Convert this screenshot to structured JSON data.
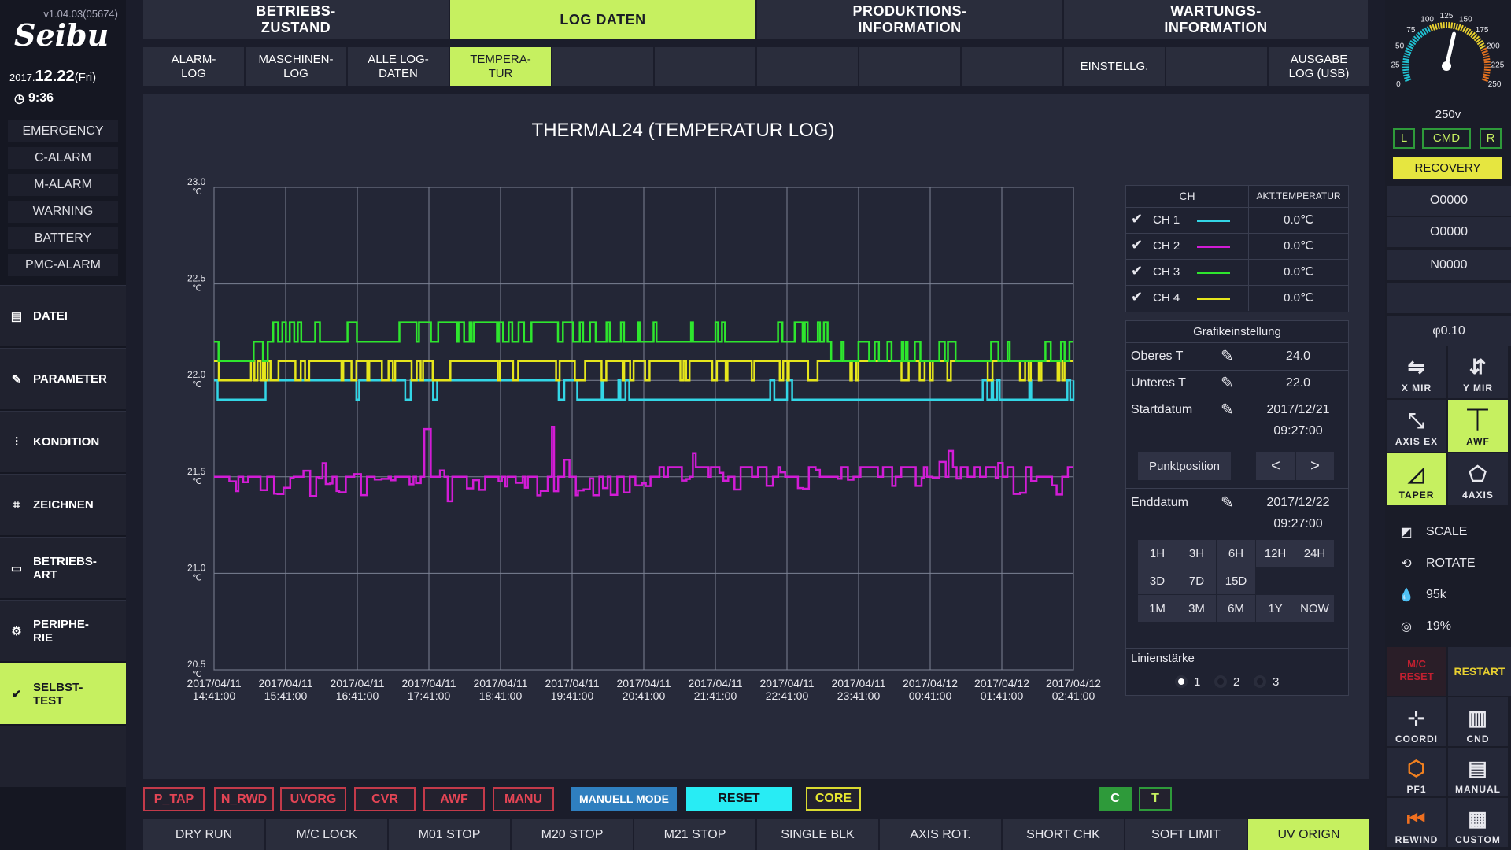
{
  "version": "v1.04.03(05674)",
  "brand": "Seibu",
  "date": {
    "year": "2017.",
    "md": "12.22",
    "dow": "(Fri)",
    "time": "9:36"
  },
  "alarms": [
    "EMERGENCY",
    "C-ALARM",
    "M-ALARM",
    "WARNING",
    "BATTERY",
    "PMC-ALARM"
  ],
  "nav": [
    {
      "label": "DATEI",
      "icon": "file-icon"
    },
    {
      "label": "PARAMETER",
      "icon": "wrench-icon"
    },
    {
      "label": "KONDITION",
      "icon": "sliders-icon"
    },
    {
      "label": "ZEICHNEN",
      "icon": "draw-icon"
    },
    {
      "label": "BETRIEBS-\nART",
      "icon": "mode-icon"
    },
    {
      "label": "PERIPHE-\nRIE",
      "icon": "gear-icon"
    },
    {
      "label": "SELBST-\nTEST",
      "icon": "check-icon"
    }
  ],
  "top_tabs": [
    "BETRIEBS-\nZUSTAND",
    "LOG DATEN",
    "PRODUKTIONS-\nINFORMATION",
    "WARTUNGS-\nINFORMATION"
  ],
  "sub_tabs": [
    "ALARM-\nLOG",
    "MASCHINEN-\nLOG",
    "ALLE LOG-\nDATEN",
    "TEMPERA-\nTUR",
    "",
    "",
    "",
    "",
    "",
    "EINSTELLG.",
    "",
    "AUSGABE\nLOG (USB)"
  ],
  "chart_data": {
    "type": "line",
    "title": "THERMAL24 (TEMPERATUR LOG)",
    "y_unit": "℃",
    "ylim": [
      20.5,
      23.0
    ],
    "y_ticks": [
      23.0,
      22.5,
      22.0,
      21.5,
      21.0,
      20.5
    ],
    "x_ticks": [
      [
        "2017/04/11",
        "14:41:00"
      ],
      [
        "2017/04/11",
        "15:41:00"
      ],
      [
        "2017/04/11",
        "16:41:00"
      ],
      [
        "2017/04/11",
        "17:41:00"
      ],
      [
        "2017/04/11",
        "18:41:00"
      ],
      [
        "2017/04/11",
        "19:41:00"
      ],
      [
        "2017/04/11",
        "20:41:00"
      ],
      [
        "2017/04/11",
        "21:41:00"
      ],
      [
        "2017/04/11",
        "22:41:00"
      ],
      [
        "2017/04/11",
        "23:41:00"
      ],
      [
        "2017/04/12",
        "00:41:00"
      ],
      [
        "2017/04/12",
        "01:41:00"
      ],
      [
        "2017/04/12",
        "02:41:00"
      ]
    ],
    "grid": true,
    "series": [
      {
        "name": "CH 1",
        "color": "#33d6e6",
        "base": 22.0,
        "low": 21.9,
        "segments": [
          [
            0,
            0.7,
            21.9
          ],
          [
            0.7,
            1.1,
            22.0
          ],
          [
            1.1,
            5.0,
            22.0
          ],
          [
            5.0,
            5.2,
            21.95
          ],
          [
            5.2,
            12.0,
            21.9
          ]
        ]
      },
      {
        "name": "CH 2",
        "color": "#d21cd6",
        "base": 21.5,
        "low": 21.4,
        "noisy": true
      },
      {
        "name": "CH 3",
        "color": "#2ee62e",
        "base": 22.1,
        "high": 22.2,
        "top": 22.4,
        "segments": [
          [
            0,
            0.7,
            22.1
          ],
          [
            0.7,
            2.5,
            22.2
          ],
          [
            2.5,
            4.0,
            22.3
          ],
          [
            4.0,
            5.0,
            22.3
          ],
          [
            5.0,
            12.0,
            22.2
          ],
          [
            8.5,
            12.0,
            22.1
          ]
        ]
      },
      {
        "name": "CH 4",
        "color": "#e6e61c",
        "base": 22.1,
        "low": 22.0,
        "segments": [
          [
            0,
            0.7,
            22.0
          ],
          [
            0.7,
            4.6,
            22.1
          ],
          [
            4.6,
            12.0,
            22.1
          ]
        ]
      }
    ]
  },
  "ch_table": {
    "head_ch": "CH",
    "head_temp": "AKT.TEMPERATUR",
    "rows": [
      {
        "label": "CH 1",
        "color": "#33d6e6",
        "temp": "0.0℃"
      },
      {
        "label": "CH 2",
        "color": "#d21cd6",
        "temp": "0.0℃"
      },
      {
        "label": "CH 3",
        "color": "#2ee62e",
        "temp": "0.0℃"
      },
      {
        "label": "CH 4",
        "color": "#e6e61c",
        "temp": "0.0℃"
      }
    ]
  },
  "grafik": {
    "title": "Grafikeinstellung",
    "oberes_label": "Oberes T",
    "oberes_val": "24.0",
    "unteres_label": "Unteres T",
    "unteres_val": "22.0",
    "start_label": "Startdatum",
    "start_date": "2017/12/21",
    "start_time": "09:27:00",
    "punkt_label": "Punktposition",
    "prev": "<",
    "next": ">",
    "end_label": "Enddatum",
    "end_date": "2017/12/22",
    "end_time": "09:27:00",
    "ranges": [
      [
        "1H",
        "3H",
        "6H",
        "12H",
        "24H"
      ],
      [
        "3D",
        "7D",
        "15D"
      ],
      [
        "1M",
        "3M",
        "6M",
        "1Y",
        "NOW"
      ]
    ],
    "linien_label": "Linienstärke",
    "linien_opts": [
      "1",
      "2",
      "3"
    ],
    "linien_selected": "1"
  },
  "status_buttons": [
    "P_TAP",
    "N_RWD",
    "UVORG",
    "CVR",
    "AWF",
    "MANU"
  ],
  "mode_buttons": {
    "manuell": "MANUELL MODE",
    "reset": "RESET",
    "core": "CORE",
    "c": "C",
    "t": "T"
  },
  "func_buttons": [
    "DRY RUN",
    "M/C LOCK",
    "M01 STOP",
    "M20 STOP",
    "M21 STOP",
    "SINGLE BLK",
    "AXIS ROT.",
    "SHORT CHK",
    "SOFT LIMIT",
    "UV ORIGN"
  ],
  "gauge": {
    "ticks": [
      "0",
      "25",
      "50",
      "75",
      "100",
      "125",
      "150",
      "175",
      "200",
      "225",
      "250"
    ],
    "value_label": "250v",
    "value": 140,
    "max": 250
  },
  "right": {
    "l": "L",
    "cmd": "CMD",
    "r": "R",
    "recovery": "RECOVERY",
    "o1": "O0000",
    "o2": "O0000",
    "n": "N0000",
    "phi": "φ0.10",
    "tools": [
      {
        "label": "X MIR",
        "icon": "x-mirror-icon"
      },
      {
        "label": "Y MIR",
        "icon": "y-mirror-icon"
      },
      {
        "label": "AXIS EX",
        "icon": "axis-ex-icon"
      },
      {
        "label": "AWF",
        "icon": "awf-icon"
      },
      {
        "label": "TAPER",
        "icon": "taper-icon"
      },
      {
        "label": "4AXIS",
        "icon": "four-axis-icon"
      }
    ],
    "scale": "SCALE",
    "rotate": "ROTATE",
    "flow": "95k",
    "speed": "19%",
    "mreset": "M/C\nRESET",
    "restart": "RESTART",
    "bottom_tools": [
      {
        "label": "COORDI",
        "icon": "coordinate-icon"
      },
      {
        "label": "CND",
        "icon": "cnd-icon"
      },
      {
        "label": "PF1",
        "icon": "pf1-icon"
      },
      {
        "label": "MANUAL",
        "icon": "manual-icon"
      },
      {
        "label": "REWIND",
        "icon": "rewind-icon"
      },
      {
        "label": "CUSTOM",
        "icon": "custom-icon"
      }
    ]
  }
}
